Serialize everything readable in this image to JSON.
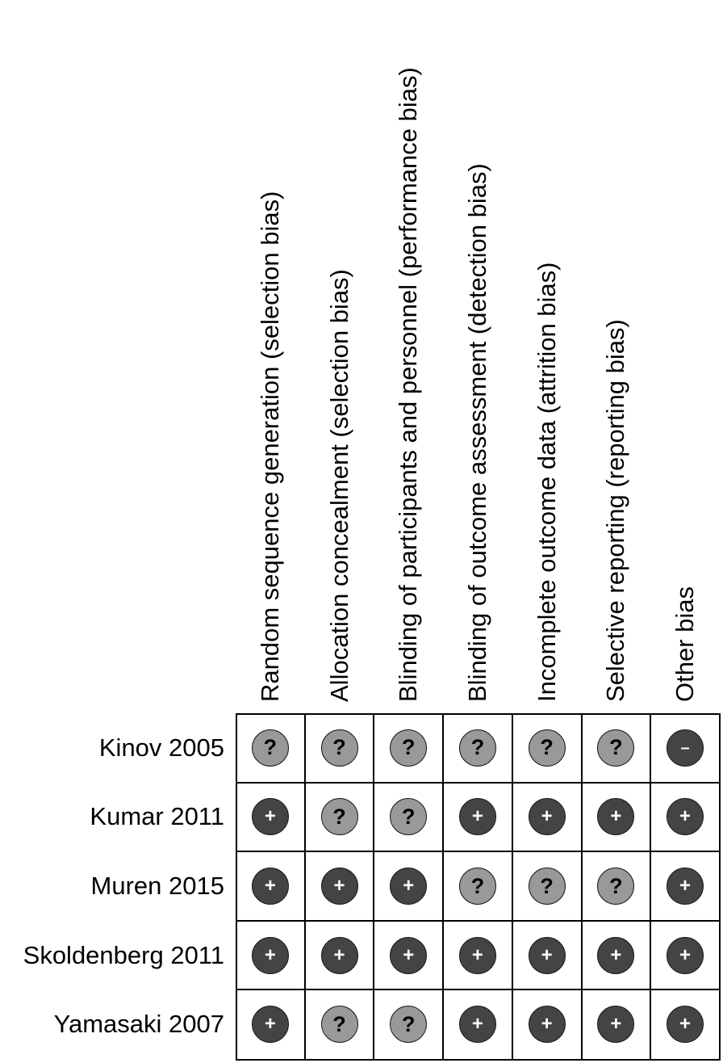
{
  "columns": [
    "Random sequence generation (selection bias)",
    "Allocation concealment (selection bias)",
    "Blinding of participants and personnel (performance bias)",
    "Blinding of outcome assessment (detection bias)",
    "Incomplete outcome data (attrition bias)",
    "Selective reporting (reporting bias)",
    "Other bias"
  ],
  "studies": [
    {
      "name": "Kinov 2005",
      "ratings": [
        "unclear",
        "unclear",
        "unclear",
        "unclear",
        "unclear",
        "unclear",
        "high"
      ]
    },
    {
      "name": "Kumar 2011",
      "ratings": [
        "low",
        "unclear",
        "unclear",
        "low",
        "low",
        "low",
        "low"
      ]
    },
    {
      "name": "Muren 2015",
      "ratings": [
        "low",
        "low",
        "low",
        "unclear",
        "unclear",
        "unclear",
        "low"
      ]
    },
    {
      "name": "Skoldenberg 2011",
      "ratings": [
        "low",
        "low",
        "low",
        "low",
        "low",
        "low",
        "low"
      ]
    },
    {
      "name": "Yamasaki 2007",
      "ratings": [
        "low",
        "unclear",
        "unclear",
        "low",
        "low",
        "low",
        "low"
      ]
    }
  ],
  "symbols": {
    "low": "+",
    "unclear": "?",
    "high": "–"
  },
  "colors": {
    "low": "#444444",
    "unclear": "#999999",
    "high": "#444444",
    "grid": "#000000"
  }
}
